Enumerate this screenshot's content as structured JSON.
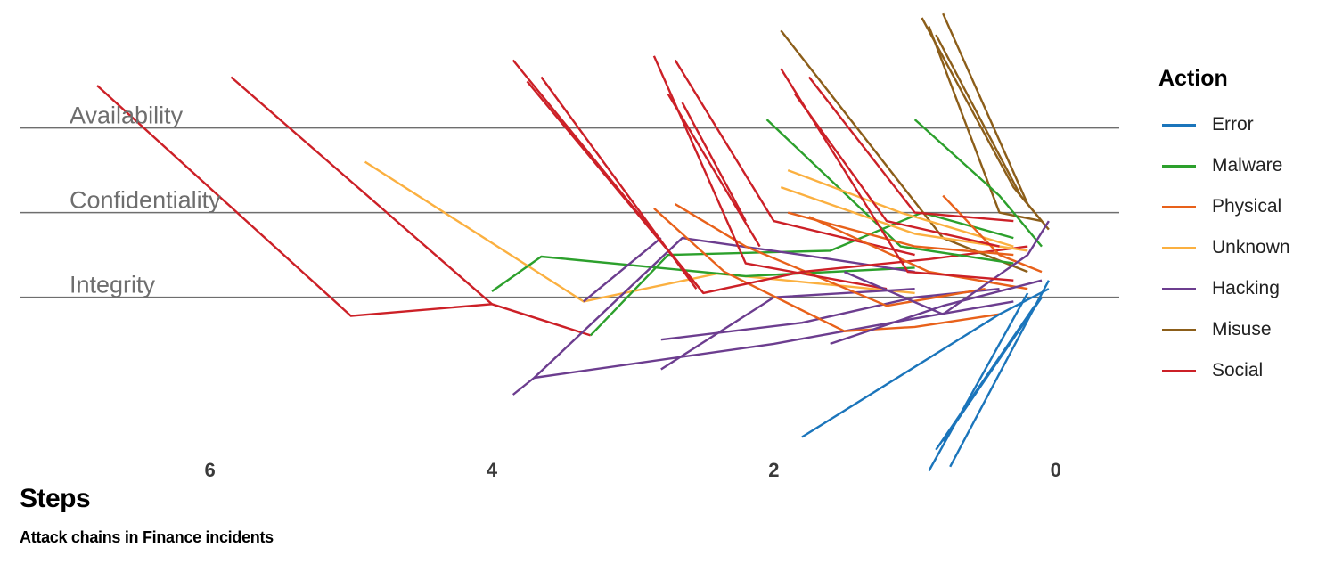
{
  "chart_data": {
    "type": "line",
    "caption": "Attack chains in Finance incidents",
    "xlabel": "Steps",
    "x_ticks": [
      6,
      4,
      2,
      0
    ],
    "xlim": [
      7.35,
      -0.45
    ],
    "y_levels": [
      "Availability",
      "Confidentiality",
      "Integrity"
    ],
    "ylim": [
      -1.75,
      3.3
    ],
    "legend": {
      "title": "Action",
      "position": "right"
    },
    "actions": [
      {
        "name": "Error",
        "color": "#1b75bb"
      },
      {
        "name": "Malware",
        "color": "#2ca02c"
      },
      {
        "name": "Physical",
        "color": "#e8611a"
      },
      {
        "name": "Unknown",
        "color": "#fbb040"
      },
      {
        "name": "Hacking",
        "color": "#6c3d8f"
      },
      {
        "name": "Misuse",
        "color": "#8c5e1a"
      },
      {
        "name": "Social",
        "color": "#cc2027"
      }
    ],
    "series": [
      {
        "action": "Social",
        "points": [
          [
            6.8,
            2.5
          ],
          [
            5.0,
            -0.22
          ],
          [
            4.0,
            -0.08
          ],
          [
            3.3,
            -0.45
          ]
        ]
      },
      {
        "action": "Social",
        "points": [
          [
            5.85,
            2.6
          ],
          [
            4.0,
            -0.08
          ]
        ]
      },
      {
        "action": "Unknown",
        "points": [
          [
            4.9,
            1.6
          ],
          [
            3.35,
            -0.05
          ],
          [
            2.4,
            0.28
          ],
          [
            1.0,
            0.05
          ]
        ]
      },
      {
        "action": "Malware",
        "points": [
          [
            4.0,
            0.07
          ],
          [
            3.65,
            0.48
          ],
          [
            2.2,
            0.25
          ],
          [
            1.0,
            0.35
          ]
        ]
      },
      {
        "action": "Malware",
        "points": [
          [
            3.3,
            -0.45
          ],
          [
            2.75,
            0.5
          ],
          [
            1.6,
            0.55
          ],
          [
            0.95,
            1.0
          ],
          [
            0.3,
            0.7
          ]
        ]
      },
      {
        "action": "Hacking",
        "points": [
          [
            3.85,
            -1.15
          ],
          [
            3.7,
            -0.95
          ],
          [
            2.65,
            0.7
          ],
          [
            1.8,
            0.5
          ],
          [
            1.0,
            0.3
          ]
        ]
      },
      {
        "action": "Hacking",
        "points": [
          [
            3.7,
            -0.95
          ],
          [
            2.0,
            -0.55
          ],
          [
            1.0,
            -0.25
          ],
          [
            0.3,
            -0.05
          ]
        ]
      },
      {
        "action": "Hacking",
        "points": [
          [
            3.35,
            -0.05
          ],
          [
            2.8,
            0.7
          ]
        ]
      },
      {
        "action": "Hacking",
        "points": [
          [
            2.8,
            -0.85
          ],
          [
            2.0,
            0.0
          ],
          [
            1.0,
            0.1
          ]
        ]
      },
      {
        "action": "Hacking",
        "points": [
          [
            2.8,
            -0.5
          ],
          [
            1.8,
            -0.3
          ],
          [
            1.0,
            0.0
          ],
          [
            0.4,
            0.1
          ]
        ]
      },
      {
        "action": "Physical",
        "points": [
          [
            2.85,
            1.05
          ],
          [
            2.35,
            0.3
          ],
          [
            1.5,
            -0.4
          ],
          [
            1.0,
            -0.35
          ],
          [
            0.4,
            -0.2
          ]
        ]
      },
      {
        "action": "Physical",
        "points": [
          [
            2.7,
            1.1
          ],
          [
            2.2,
            0.6
          ],
          [
            1.2,
            -0.1
          ],
          [
            0.5,
            0.1
          ]
        ]
      },
      {
        "action": "Social",
        "points": [
          [
            3.85,
            2.8
          ],
          [
            2.5,
            0.05
          ],
          [
            1.8,
            0.3
          ],
          [
            0.9,
            0.45
          ],
          [
            0.2,
            0.6
          ]
        ]
      },
      {
        "action": "Social",
        "points": [
          [
            3.75,
            2.55
          ],
          [
            2.5,
            0.05
          ]
        ]
      },
      {
        "action": "Social",
        "points": [
          [
            3.65,
            2.6
          ],
          [
            2.55,
            0.1
          ]
        ]
      },
      {
        "action": "Social",
        "points": [
          [
            2.85,
            2.85
          ],
          [
            2.2,
            0.4
          ],
          [
            1.2,
            0.1
          ]
        ]
      },
      {
        "action": "Social",
        "points": [
          [
            2.7,
            2.8
          ],
          [
            2.0,
            0.9
          ],
          [
            1.0,
            0.5
          ]
        ]
      },
      {
        "action": "Social",
        "points": [
          [
            2.75,
            2.4
          ],
          [
            2.1,
            0.6
          ]
        ]
      },
      {
        "action": "Social",
        "points": [
          [
            2.65,
            2.3
          ],
          [
            2.2,
            0.9
          ]
        ]
      },
      {
        "action": "Misuse",
        "points": [
          [
            1.95,
            3.15
          ],
          [
            0.8,
            0.7
          ],
          [
            0.2,
            0.3
          ]
        ]
      },
      {
        "action": "Misuse",
        "points": [
          [
            0.95,
            3.3
          ],
          [
            0.3,
            1.3
          ],
          [
            0.1,
            0.9
          ]
        ]
      },
      {
        "action": "Misuse",
        "points": [
          [
            0.9,
            3.2
          ],
          [
            0.4,
            1.0
          ],
          [
            0.1,
            0.9
          ]
        ]
      },
      {
        "action": "Misuse",
        "points": [
          [
            0.85,
            3.1
          ],
          [
            0.25,
            1.2
          ],
          [
            0.05,
            0.8
          ]
        ]
      },
      {
        "action": "Misuse",
        "points": [
          [
            0.8,
            3.35
          ],
          [
            0.2,
            1.1
          ]
        ]
      },
      {
        "action": "Malware",
        "points": [
          [
            2.05,
            2.1
          ],
          [
            1.1,
            0.6
          ],
          [
            0.3,
            0.4
          ]
        ]
      },
      {
        "action": "Malware",
        "points": [
          [
            1.0,
            2.1
          ],
          [
            0.4,
            1.2
          ],
          [
            0.1,
            0.6
          ]
        ]
      },
      {
        "action": "Unknown",
        "points": [
          [
            1.95,
            1.3
          ],
          [
            1.0,
            0.75
          ],
          [
            0.2,
            0.55
          ]
        ]
      },
      {
        "action": "Unknown",
        "points": [
          [
            1.9,
            1.5
          ],
          [
            1.1,
            1.0
          ],
          [
            0.3,
            0.6
          ]
        ]
      },
      {
        "action": "Physical",
        "points": [
          [
            1.9,
            1.0
          ],
          [
            1.0,
            0.6
          ],
          [
            0.3,
            0.5
          ]
        ]
      },
      {
        "action": "Physical",
        "points": [
          [
            1.75,
            0.95
          ],
          [
            0.9,
            0.3
          ],
          [
            0.2,
            0.1
          ]
        ]
      },
      {
        "action": "Physical",
        "points": [
          [
            0.8,
            1.2
          ],
          [
            0.4,
            0.5
          ],
          [
            0.1,
            0.3
          ]
        ]
      },
      {
        "action": "Hacking",
        "points": [
          [
            1.5,
            0.3
          ],
          [
            0.8,
            -0.2
          ],
          [
            0.2,
            0.5
          ],
          [
            0.05,
            0.9
          ]
        ]
      },
      {
        "action": "Hacking",
        "points": [
          [
            1.6,
            -0.55
          ],
          [
            0.8,
            -0.1
          ],
          [
            0.1,
            0.2
          ]
        ]
      },
      {
        "action": "Error",
        "points": [
          [
            1.8,
            -1.65
          ],
          [
            0.4,
            -0.2
          ],
          [
            0.05,
            0.1
          ]
        ]
      },
      {
        "action": "Error",
        "points": [
          [
            0.9,
            -2.05
          ],
          [
            0.2,
            0.05
          ]
        ]
      },
      {
        "action": "Error",
        "points": [
          [
            0.85,
            -1.8
          ],
          [
            0.15,
            -0.1
          ]
        ]
      },
      {
        "action": "Error",
        "points": [
          [
            0.8,
            -1.7
          ],
          [
            0.1,
            0.0
          ]
        ]
      },
      {
        "action": "Error",
        "points": [
          [
            0.75,
            -2.0
          ],
          [
            0.05,
            0.2
          ]
        ]
      },
      {
        "action": "Social",
        "points": [
          [
            1.95,
            2.7
          ],
          [
            1.05,
            0.3
          ],
          [
            0.3,
            0.2
          ]
        ]
      },
      {
        "action": "Social",
        "points": [
          [
            1.85,
            2.4
          ],
          [
            1.2,
            0.9
          ],
          [
            0.4,
            0.6
          ]
        ]
      },
      {
        "action": "Social",
        "points": [
          [
            1.75,
            2.6
          ],
          [
            1.0,
            1.0
          ],
          [
            0.3,
            0.9
          ]
        ]
      }
    ]
  }
}
